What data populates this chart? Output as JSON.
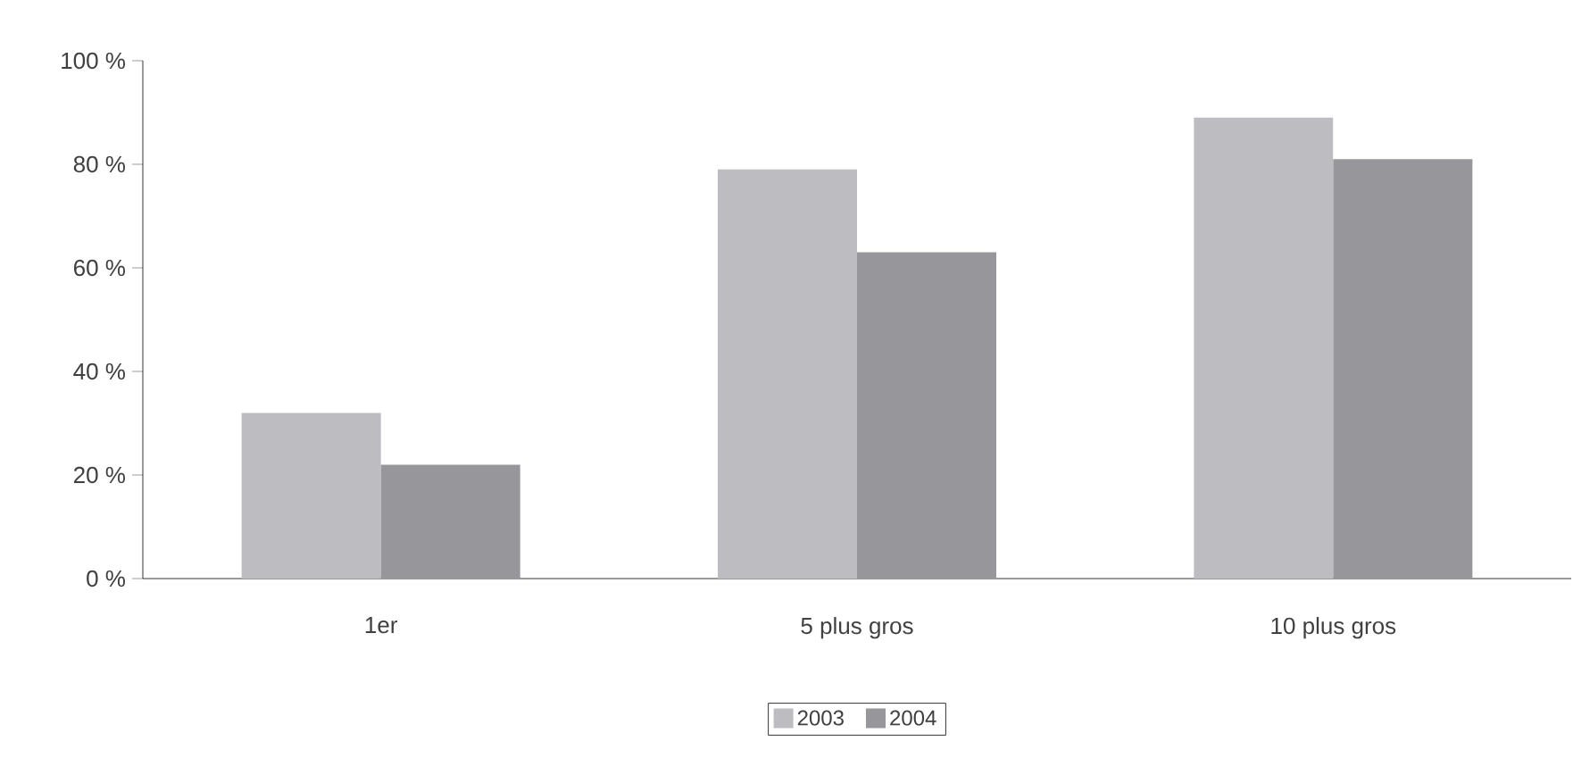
{
  "chart_data": {
    "type": "bar",
    "categories": [
      "1er",
      "5 plus gros",
      "10 plus gros"
    ],
    "series": [
      {
        "name": "2003",
        "color": "#bdbdc1",
        "values": [
          32,
          79,
          89
        ]
      },
      {
        "name": "2004",
        "color": "#97979b",
        "values": [
          22,
          63,
          81
        ]
      }
    ],
    "ylim": [
      0,
      100
    ],
    "yticks": [
      {
        "value": 0,
        "label": "0 %"
      },
      {
        "value": 20,
        "label": "20 %"
      },
      {
        "value": 40,
        "label": "40 %"
      },
      {
        "value": 60,
        "label": "60 %"
      },
      {
        "value": 80,
        "label": "80 %"
      },
      {
        "value": 100,
        "label": "100 %"
      }
    ],
    "grid": false,
    "legend": "bottom"
  }
}
